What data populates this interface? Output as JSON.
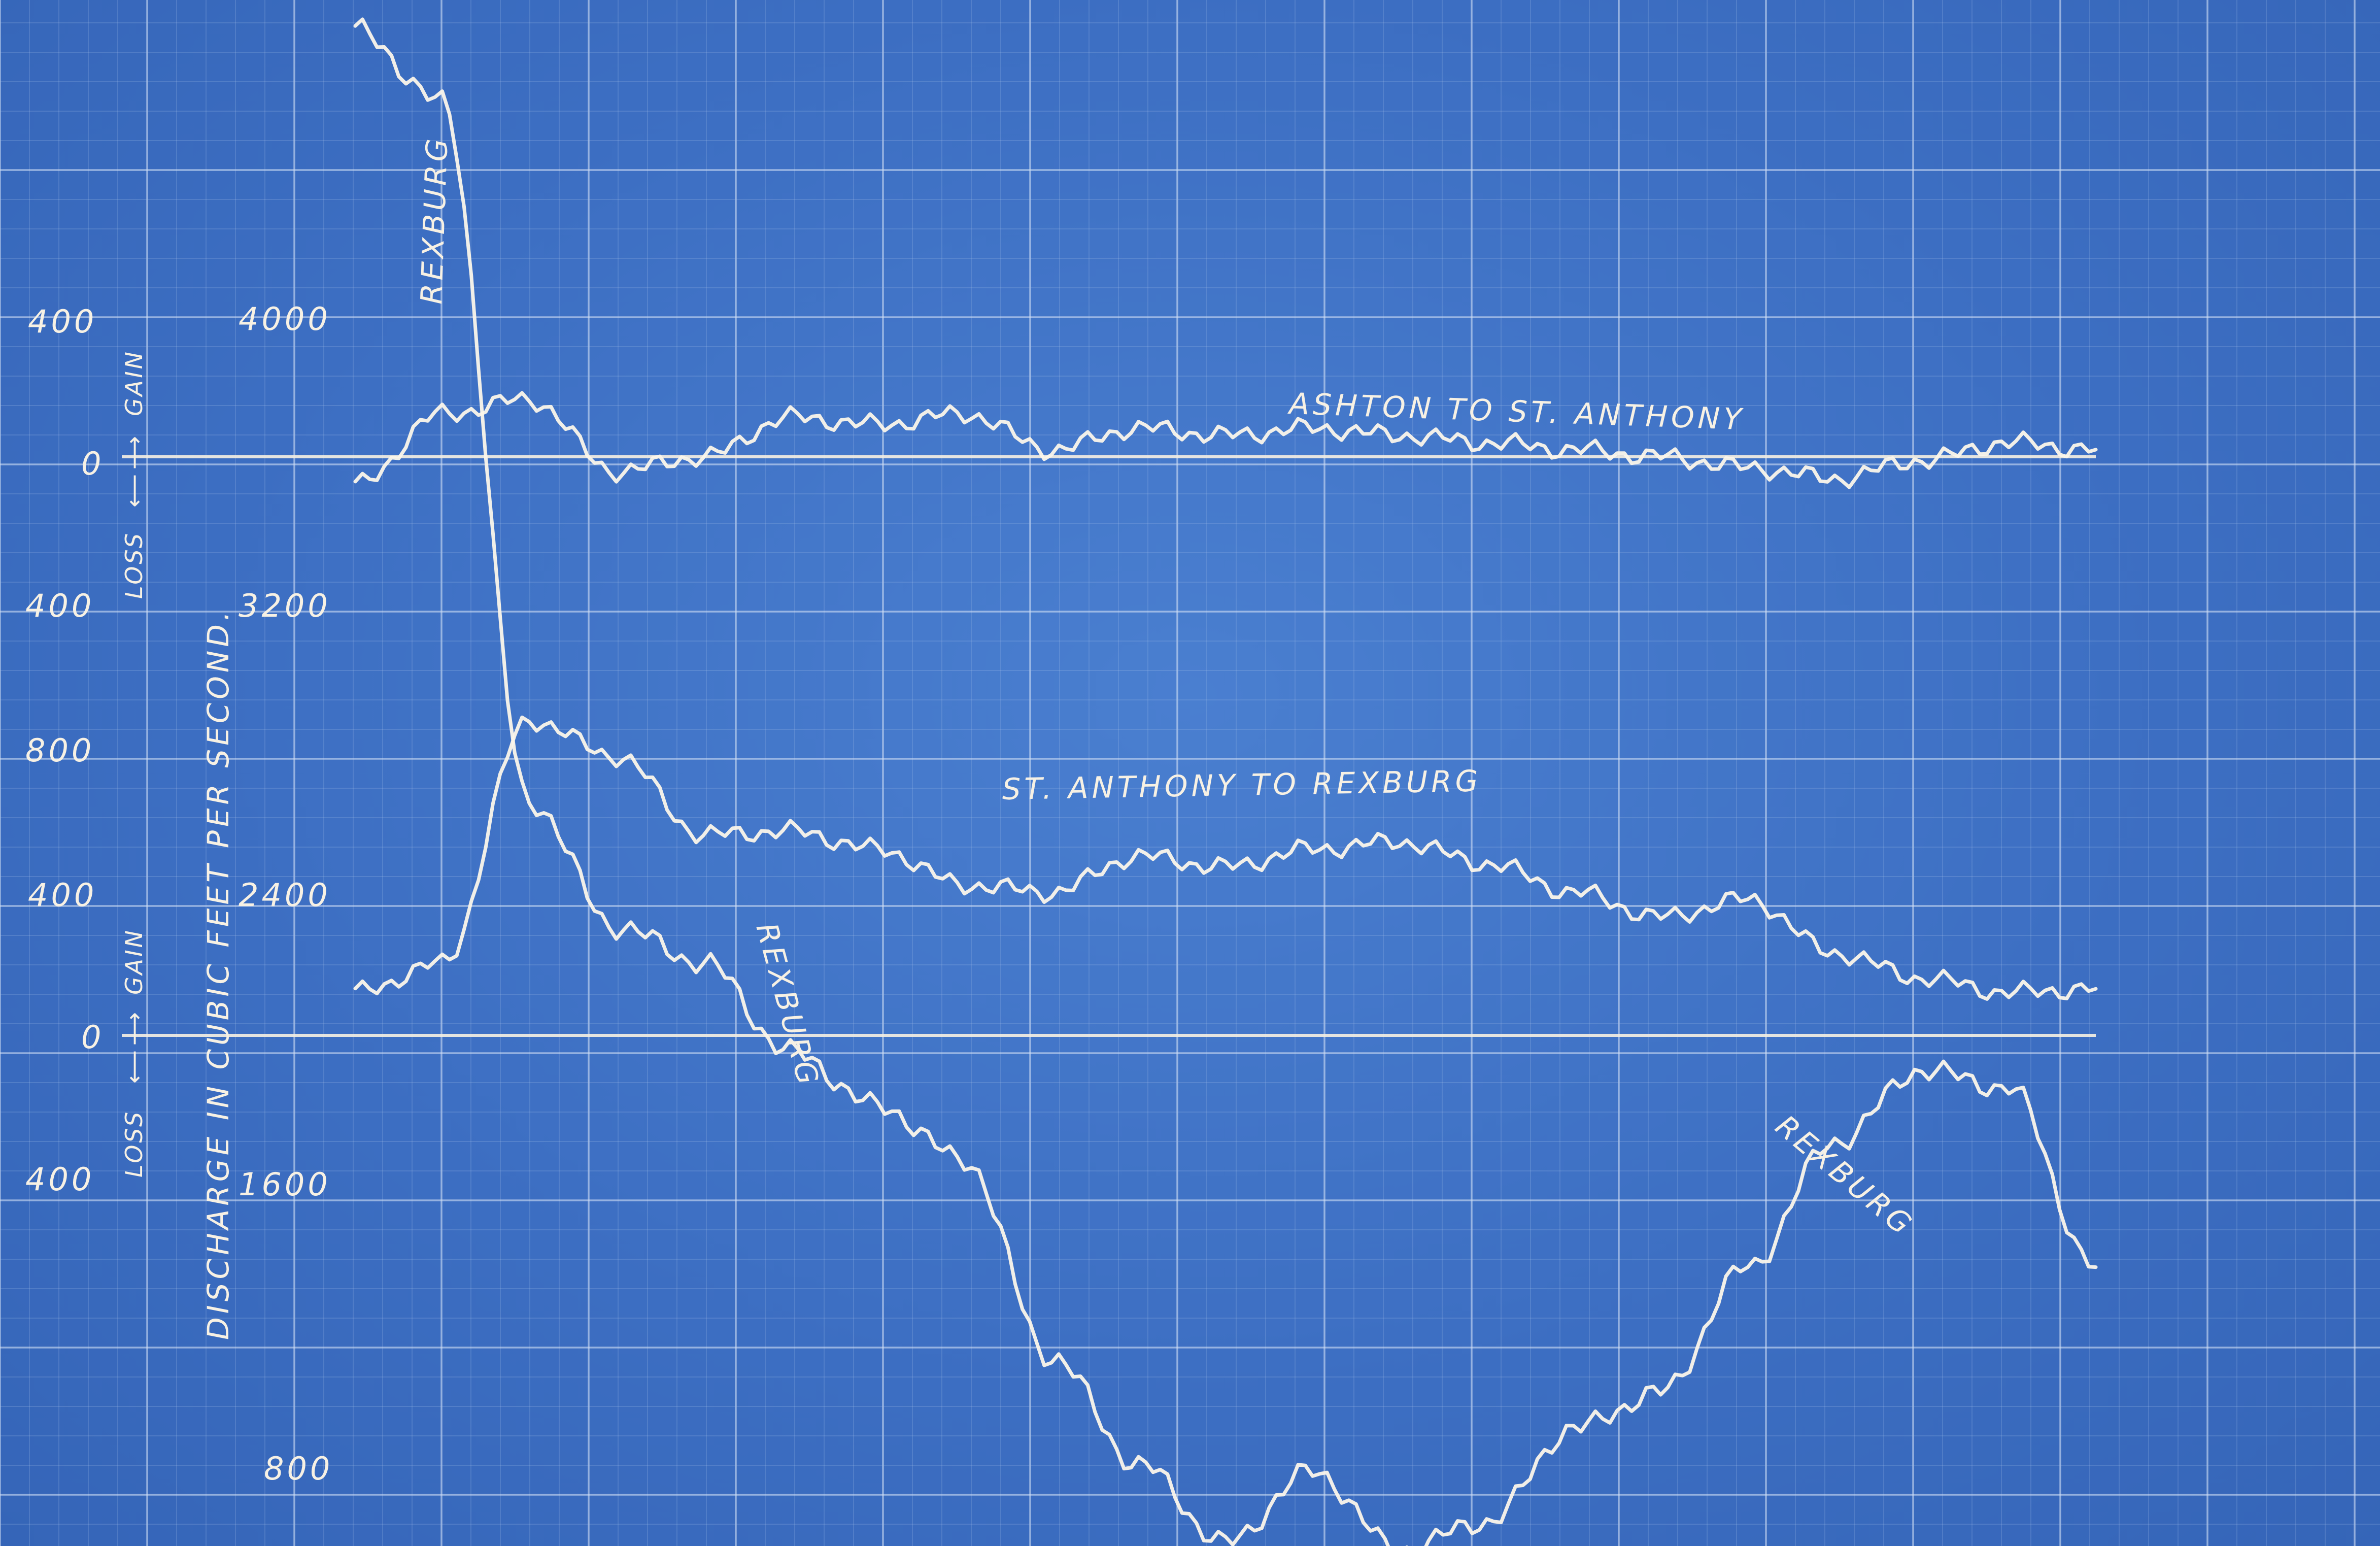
{
  "chart_data": {
    "type": "line",
    "left_ylabel": "DISCHARGE IN CUBIC FEET PER SECOND.",
    "left_ticks": [
      "4000",
      "3200",
      "2400",
      "1600",
      "800"
    ],
    "left_ylim": [
      400,
      4400
    ],
    "gain_loss_panels": [
      {
        "name": "upper",
        "ticks": [
          "400",
          "0",
          "400"
        ],
        "ylim": [
          -400,
          400
        ],
        "gain_label": "GAIN",
        "loss_label": "LOSS"
      },
      {
        "name": "middle",
        "ticks": [
          "800",
          "400",
          "0",
          "400"
        ],
        "ylim": [
          -400,
          800
        ],
        "gain_label": "GAIN",
        "loss_label": "LOSS"
      }
    ],
    "series": [
      {
        "name": "REXBURG",
        "panel": "discharge",
        "units": "cfs",
        "x": [
          0,
          5,
          10,
          15,
          20,
          25,
          30,
          35,
          40,
          45,
          50,
          55,
          60,
          65,
          70,
          75,
          80,
          85,
          90,
          95,
          100
        ],
        "y": [
          4800,
          4600,
          2650,
          2300,
          2200,
          1950,
          1800,
          1650,
          1100,
          800,
          580,
          780,
          560,
          640,
          900,
          1000,
          1350,
          1700,
          1900,
          1850,
          1350
        ]
      },
      {
        "name": "ASHTON TO ST. ANTHONY",
        "panel": "upper",
        "units": "cfs gain/loss",
        "x": [
          0,
          5,
          10,
          15,
          20,
          25,
          30,
          35,
          40,
          45,
          50,
          55,
          60,
          65,
          70,
          75,
          80,
          85,
          90,
          95,
          100
        ],
        "y": [
          -80,
          120,
          160,
          -40,
          0,
          110,
          90,
          120,
          20,
          80,
          60,
          80,
          60,
          40,
          20,
          0,
          -30,
          -60,
          -10,
          40,
          20
        ]
      },
      {
        "name": "ST. ANTHONY TO REXBURG",
        "panel": "middle",
        "units": "cfs gain/loss",
        "x": [
          0,
          5,
          10,
          15,
          20,
          25,
          30,
          35,
          40,
          45,
          50,
          55,
          60,
          65,
          70,
          75,
          80,
          85,
          90,
          95,
          100
        ],
        "y": [
          120,
          200,
          880,
          780,
          560,
          570,
          520,
          420,
          400,
          500,
          470,
          520,
          540,
          480,
          400,
          330,
          380,
          230,
          160,
          120,
          130
        ]
      }
    ],
    "annotations": [
      "REXBURG",
      "ASHTON TO ST. ANTHONY",
      "ST. ANTHONY TO REXBURG",
      "REXBURG",
      "REXBURG"
    ]
  }
}
